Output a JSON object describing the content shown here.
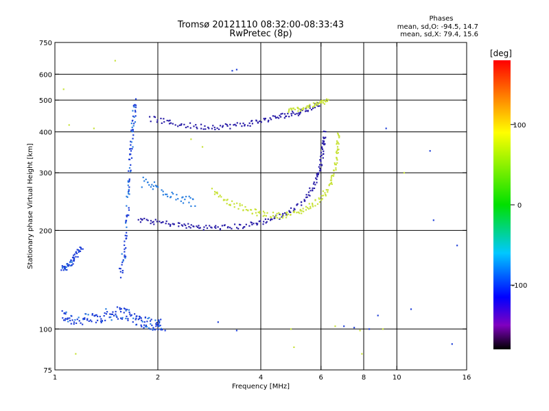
{
  "chart_data": {
    "type": "scatter",
    "title": "Tromsø 20121110 08:32:00-08:33:43",
    "subtitle": "RwPretec (8p)",
    "xlabel": "Frequency [MHz]",
    "ylabel": "Stationary phase Virtual Height [km]",
    "x_scale": "log",
    "y_scale": "log",
    "xlim": [
      1,
      16
    ],
    "ylim": [
      75,
      750
    ],
    "x_ticks": [
      1,
      2,
      4,
      6,
      8,
      10,
      16
    ],
    "x_tick_labels": [
      "1",
      "2",
      "4",
      "6",
      "8",
      "10",
      "16"
    ],
    "x_grid": [
      2,
      4,
      6,
      8,
      10
    ],
    "y_ticks": [
      75,
      100,
      200,
      300,
      400,
      500,
      600,
      750
    ],
    "y_tick_labels": [
      "75",
      "100",
      "200",
      "300",
      "400",
      "500",
      "600",
      "750"
    ],
    "y_grid": [
      100,
      200,
      300,
      400,
      500,
      600
    ],
    "grid": true,
    "stats_heading": "Phases",
    "stats_lines": [
      "mean, sd,O: -94.5, 14.7",
      "mean, sd,X: 79.4, 15.6"
    ],
    "colorbar": {
      "unit": "[deg]",
      "range": [
        -180,
        180
      ],
      "ticks": [
        100,
        0,
        -100
      ],
      "tick_labels": [
        "100",
        "0",
        "-100"
      ],
      "stops": [
        {
          "v": -180,
          "color": "#000000"
        },
        {
          "v": -150,
          "color": "#8000c0"
        },
        {
          "v": -115,
          "color": "#0000ff"
        },
        {
          "v": -60,
          "color": "#00c8ff"
        },
        {
          "v": 0,
          "color": "#00e000"
        },
        {
          "v": 90,
          "color": "#ffff00"
        },
        {
          "v": 135,
          "color": "#ff8000"
        },
        {
          "v": 180,
          "color": "#ff0000"
        }
      ]
    },
    "point_colors": {
      "O": "#1f3fd8",
      "X": "#c8e23a",
      "O_dark": "#2b1fa8",
      "O_light": "#2a7fe0"
    },
    "traces": [
      {
        "name": "E layer low",
        "phase": -100,
        "color": "O",
        "points": [
          [
            1.05,
            110
          ],
          [
            1.1,
            108
          ],
          [
            1.2,
            106
          ],
          [
            1.3,
            108
          ],
          [
            1.4,
            110
          ],
          [
            1.5,
            112
          ],
          [
            1.6,
            112
          ],
          [
            1.7,
            108
          ],
          [
            1.8,
            106
          ],
          [
            1.9,
            104
          ],
          [
            2.0,
            103
          ],
          [
            2.05,
            102
          ]
        ],
        "spread_y": 0.045
      },
      {
        "name": "Es trace",
        "phase": -100,
        "color": "O",
        "points": [
          [
            1.05,
            152
          ],
          [
            1.08,
            155
          ],
          [
            1.12,
            160
          ],
          [
            1.15,
            168
          ],
          [
            1.2,
            178
          ]
        ],
        "spread_y": 0.02
      },
      {
        "name": "F1 cusp column",
        "phase": -100,
        "color": "O",
        "points": [
          [
            1.55,
            150
          ],
          [
            1.6,
            170
          ],
          [
            1.62,
            210
          ],
          [
            1.64,
            260
          ],
          [
            1.66,
            320
          ],
          [
            1.68,
            380
          ],
          [
            1.7,
            440
          ],
          [
            1.72,
            490
          ]
        ],
        "spread_y": 0.05
      },
      {
        "name": "F2 lower O trace",
        "phase": -110,
        "color": "O_dark",
        "points": [
          [
            1.75,
            215
          ],
          [
            2.0,
            212
          ],
          [
            2.3,
            208
          ],
          [
            2.6,
            205
          ],
          [
            3.0,
            204
          ],
          [
            3.5,
            206
          ],
          [
            4.0,
            212
          ],
          [
            4.5,
            220
          ],
          [
            5.0,
            232
          ],
          [
            5.5,
            255
          ],
          [
            5.8,
            285
          ],
          [
            6.0,
            320
          ],
          [
            6.1,
            360
          ],
          [
            6.15,
            400
          ]
        ],
        "spread_y": 0.018
      },
      {
        "name": "F2 upper O trace",
        "phase": -110,
        "color": "O_dark",
        "points": [
          [
            1.9,
            440
          ],
          [
            2.2,
            425
          ],
          [
            2.6,
            415
          ],
          [
            3.0,
            415
          ],
          [
            3.5,
            420
          ],
          [
            4.0,
            432
          ],
          [
            4.5,
            445
          ],
          [
            5.0,
            455
          ],
          [
            5.5,
            470
          ],
          [
            6.0,
            490
          ]
        ],
        "spread_y": 0.02
      },
      {
        "name": "F2 X trace",
        "phase": 80,
        "color": "X",
        "points": [
          [
            2.9,
            265
          ],
          [
            3.2,
            245
          ],
          [
            3.6,
            232
          ],
          [
            4.0,
            225
          ],
          [
            4.5,
            222
          ],
          [
            5.0,
            225
          ],
          [
            5.5,
            235
          ],
          [
            6.0,
            250
          ],
          [
            6.4,
            275
          ],
          [
            6.6,
            310
          ],
          [
            6.7,
            350
          ],
          [
            6.75,
            400
          ]
        ],
        "spread_y": 0.02
      },
      {
        "name": "Upper X trace",
        "phase": 80,
        "color": "X",
        "points": [
          [
            4.8,
            465
          ],
          [
            5.2,
            470
          ],
          [
            5.6,
            480
          ],
          [
            6.0,
            490
          ],
          [
            6.3,
            500
          ]
        ],
        "spread_y": 0.015
      },
      {
        "name": "Diffuse F spread",
        "phase": -90,
        "color": "O_light",
        "points": [
          [
            1.8,
            280
          ],
          [
            2.0,
            270
          ],
          [
            2.3,
            255
          ],
          [
            2.6,
            240
          ]
        ],
        "spread_y": 0.04
      }
    ],
    "isolated_points": [
      [
        1.5,
        660,
        70
      ],
      [
        1.06,
        540,
        80
      ],
      [
        1.1,
        420,
        90
      ],
      [
        1.3,
        410,
        90
      ],
      [
        3.3,
        615,
        -110
      ],
      [
        3.4,
        620,
        -110
      ],
      [
        2.5,
        380,
        90
      ],
      [
        2.7,
        360,
        90
      ],
      [
        9.3,
        410,
        -100
      ],
      [
        10.5,
        300,
        90
      ],
      [
        12.5,
        350,
        -110
      ],
      [
        12.8,
        215,
        -100
      ],
      [
        15.0,
        180,
        -110
      ],
      [
        11.0,
        115,
        -100
      ],
      [
        8.8,
        110,
        -100
      ],
      [
        7.0,
        102,
        -100
      ],
      [
        7.5,
        101,
        -100
      ],
      [
        4.9,
        100,
        90
      ],
      [
        3.4,
        99,
        -110
      ],
      [
        2.1,
        99,
        -100
      ],
      [
        1.9,
        100,
        -100
      ],
      [
        7.8,
        99,
        90
      ],
      [
        5.0,
        88,
        90
      ],
      [
        7.9,
        84,
        100
      ],
      [
        1.15,
        84,
        120
      ],
      [
        14.5,
        90,
        -100
      ],
      [
        3.0,
        105,
        -100
      ],
      [
        9.1,
        100,
        90
      ],
      [
        8.3,
        100,
        -110
      ],
      [
        6.6,
        102,
        90
      ]
    ]
  }
}
